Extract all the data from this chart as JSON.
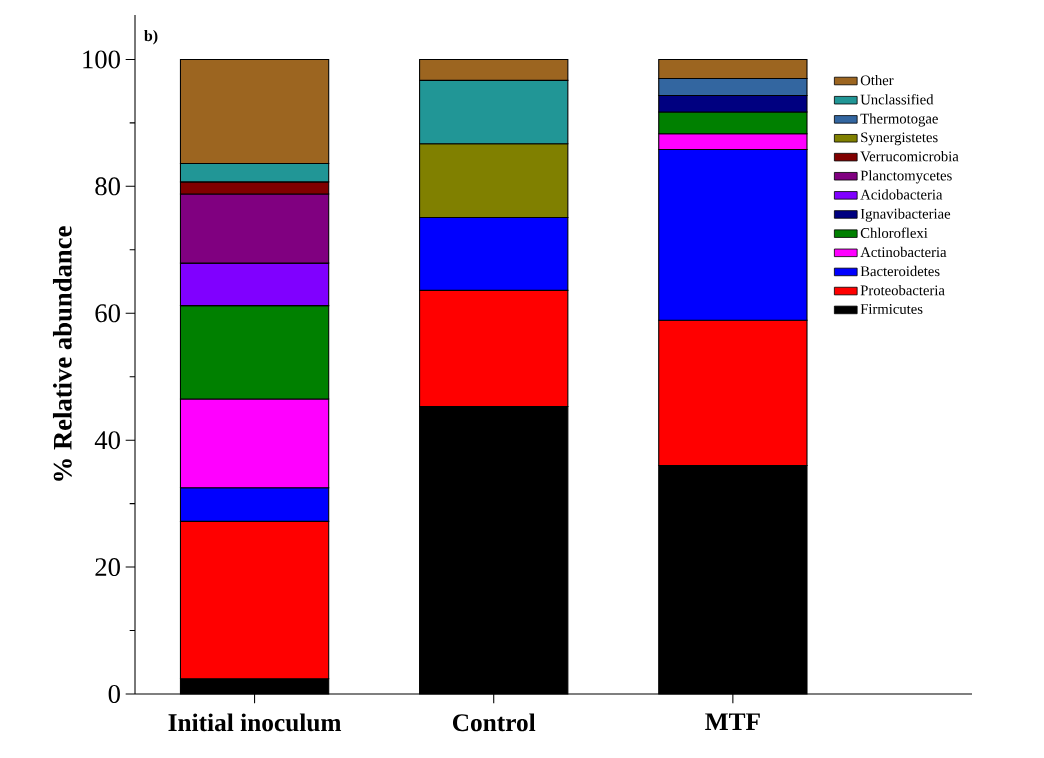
{
  "chart_data": {
    "type": "bar",
    "stacked": true,
    "ylabel": "% Relative abundance",
    "annotations": [
      "b)"
    ],
    "categories": [
      "Initial inoculum",
      "Control",
      "MTF"
    ],
    "ylim": [
      0,
      107
    ],
    "yticks": [
      0,
      20,
      40,
      60,
      80,
      100
    ],
    "legend": "top right",
    "series": [
      {
        "name": "Firmicutes",
        "color": "#000000",
        "values": [
          2.4,
          45.3,
          36.0
        ]
      },
      {
        "name": "Proteobacteria",
        "color": "#ff0000",
        "values": [
          24.8,
          18.3,
          22.9
        ]
      },
      {
        "name": "Bacteroidetes",
        "color": "#0000ff",
        "values": [
          5.3,
          11.5,
          26.9
        ]
      },
      {
        "name": "Actinobacteria",
        "color": "#ff00ff",
        "values": [
          14.0,
          null,
          2.5
        ]
      },
      {
        "name": "Chloroflexi",
        "color": "#008000",
        "values": [
          14.7,
          null,
          3.4
        ]
      },
      {
        "name": "Ignavibacteriae",
        "color": "#000080",
        "values": [
          null,
          null,
          2.6
        ]
      },
      {
        "name": "Acidobacteria",
        "color": "#8000ff",
        "values": [
          6.7,
          null,
          null
        ]
      },
      {
        "name": "Planctomycetes",
        "color": "#800080",
        "values": [
          10.9,
          null,
          null
        ]
      },
      {
        "name": "Verrucomicrobia",
        "color": "#800000",
        "values": [
          1.9,
          null,
          null
        ]
      },
      {
        "name": "Synergistetes",
        "color": "#808000",
        "values": [
          null,
          11.6,
          null
        ]
      },
      {
        "name": "Thermotogae",
        "color": "#3366a0",
        "values": [
          null,
          null,
          2.7
        ]
      },
      {
        "name": "Unclassified",
        "color": "#219696",
        "values": [
          2.9,
          10.0,
          null
        ]
      },
      {
        "name": "Other",
        "color": "#9c6520",
        "values": [
          16.4,
          3.3,
          3.0
        ]
      }
    ]
  }
}
